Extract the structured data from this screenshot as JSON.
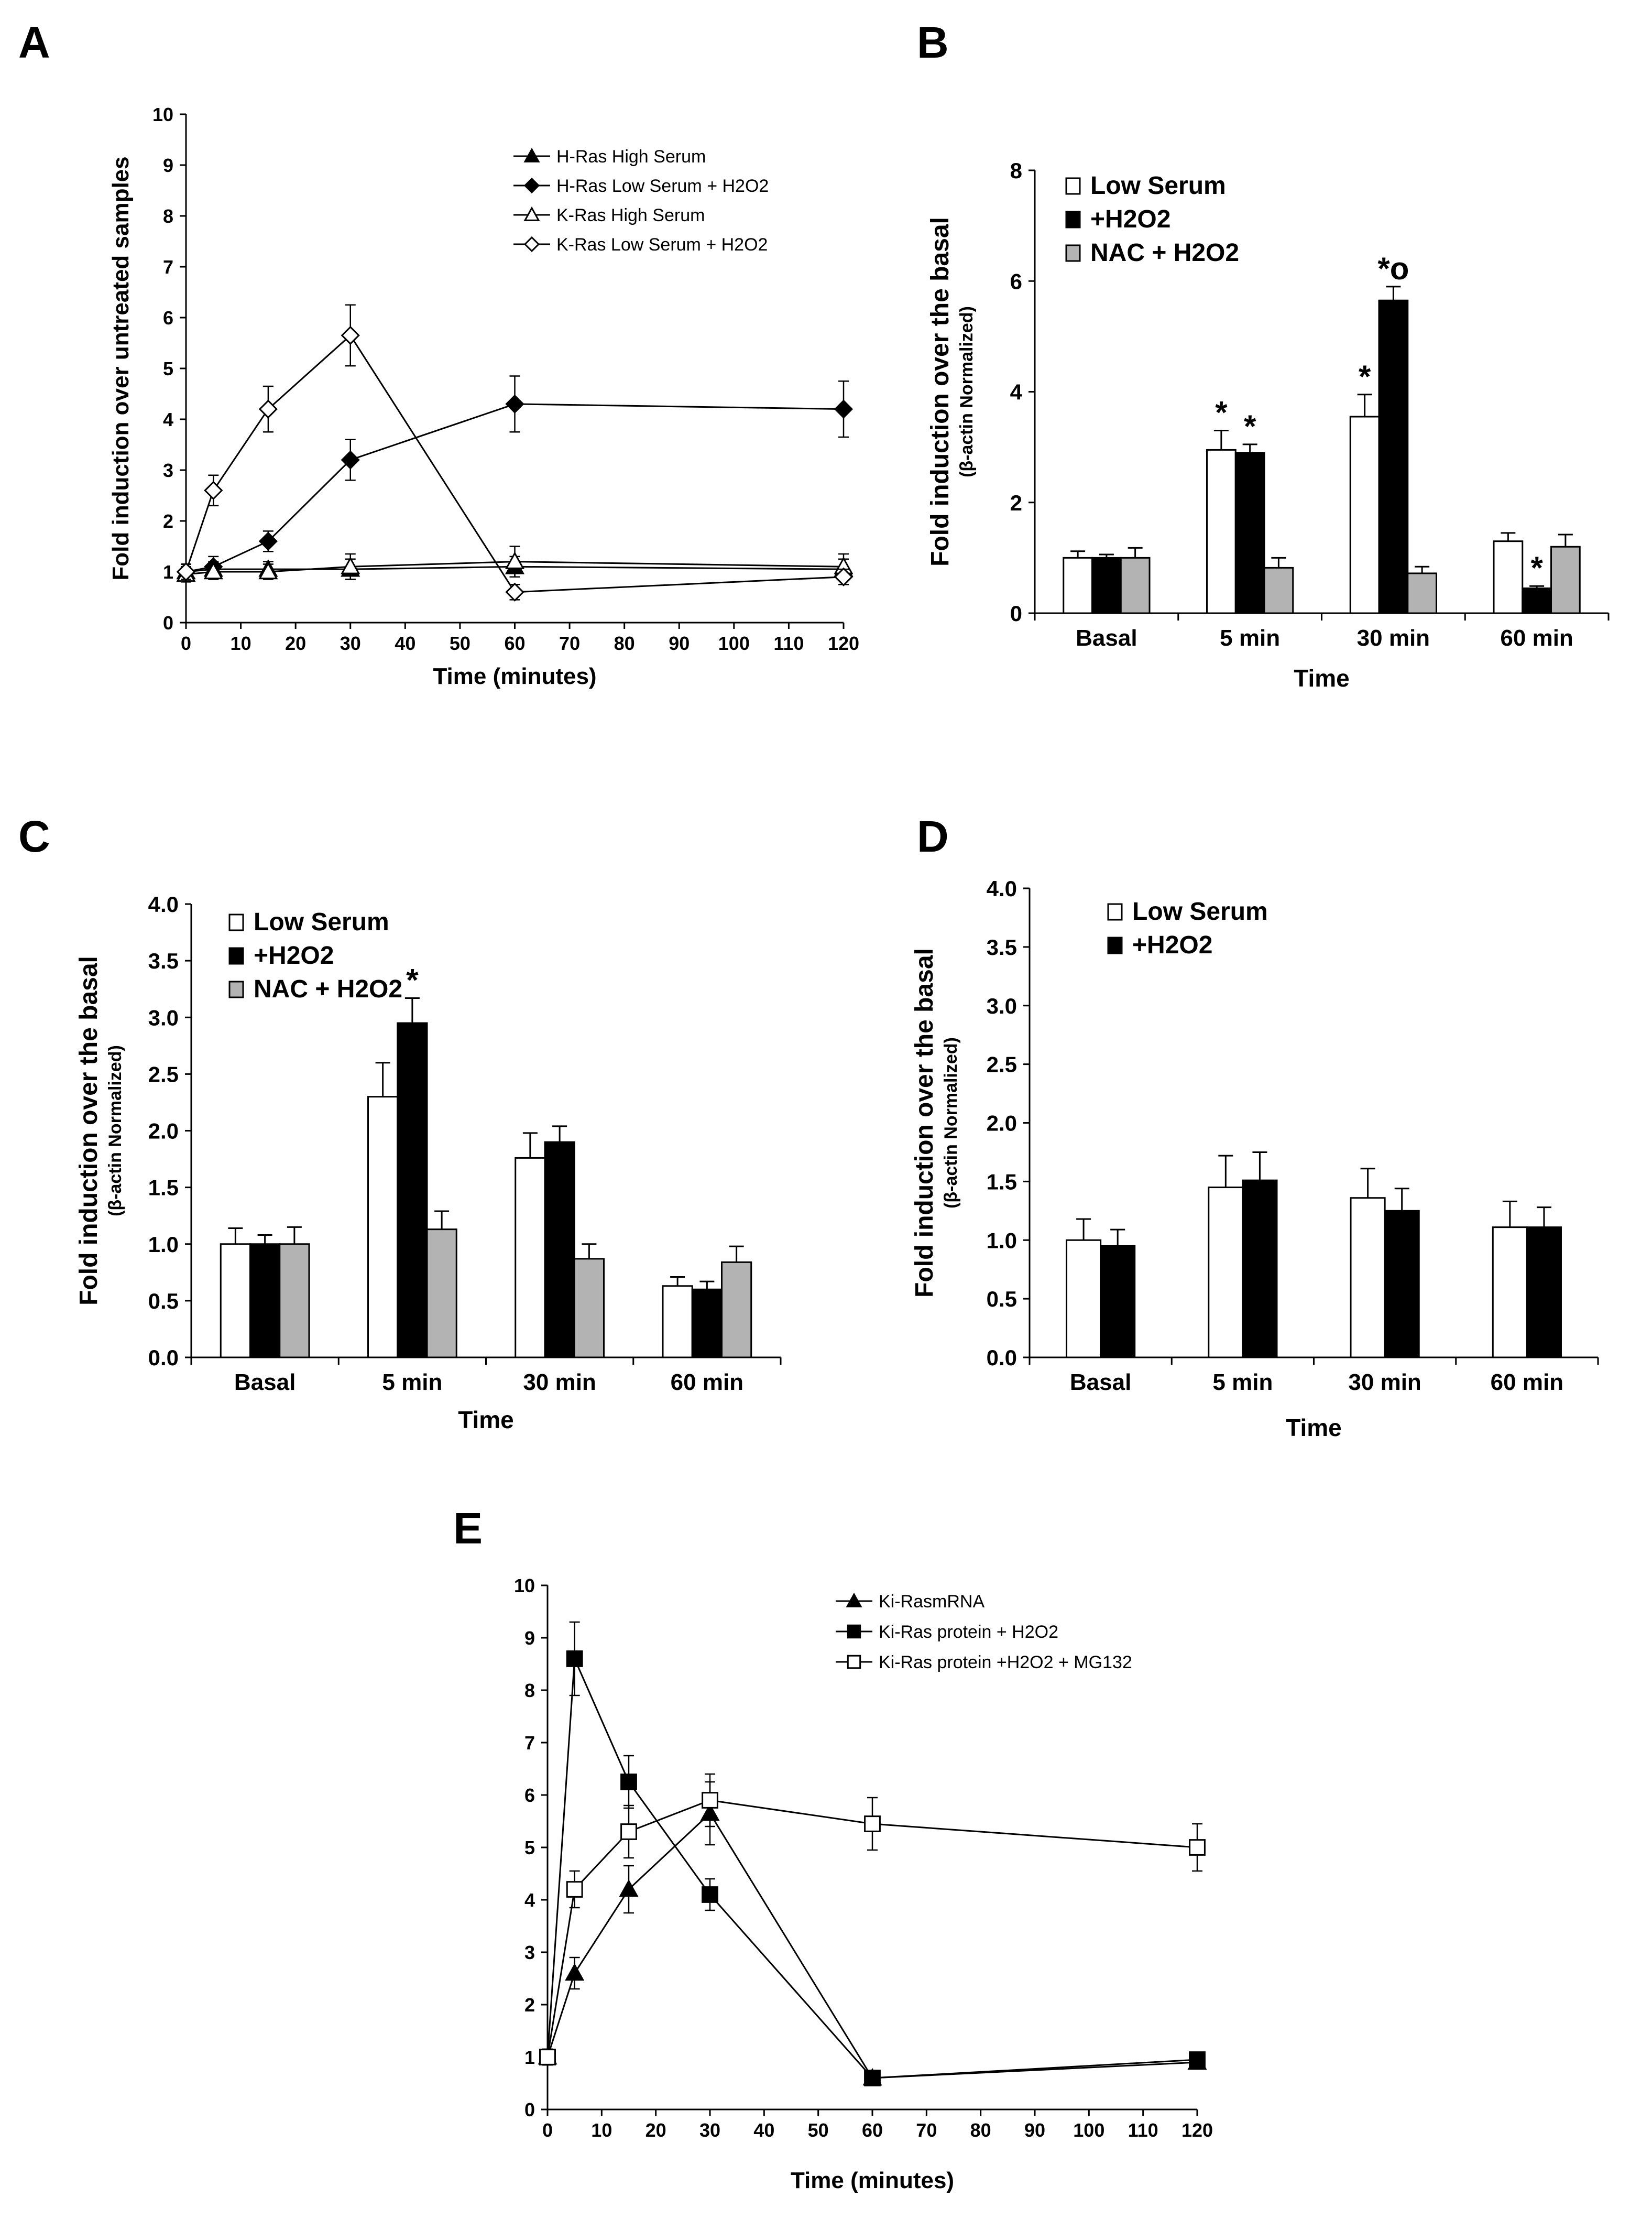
{
  "chart_data": [
    {
      "panel": "A",
      "type": "line",
      "xlabel": "Time (minutes)",
      "ylabel": "Fold induction over untreated samples",
      "xlim": [
        0,
        120
      ],
      "ylim": [
        0,
        10
      ],
      "x_ticks": [
        0,
        10,
        20,
        30,
        40,
        50,
        60,
        70,
        80,
        90,
        100,
        110,
        120
      ],
      "y_ticks": [
        0,
        1,
        2,
        3,
        4,
        5,
        6,
        7,
        8,
        9,
        10
      ],
      "legend": "top-right",
      "series": [
        {
          "name": "H-Ras High Serum",
          "marker": "triangle-filled",
          "x": [
            0,
            5,
            15,
            30,
            60,
            120
          ],
          "y": [
            1.0,
            1.05,
            1.05,
            1.05,
            1.1,
            1.05
          ],
          "err": [
            0.15,
            0.15,
            0.15,
            0.2,
            0.2,
            0.2
          ]
        },
        {
          "name": "H-Ras Low Serum + H2O2",
          "marker": "diamond-filled",
          "x": [
            0,
            5,
            15,
            30,
            60,
            120
          ],
          "y": [
            1.0,
            1.1,
            1.6,
            3.2,
            4.3,
            4.2
          ],
          "err": [
            0.15,
            0.2,
            0.2,
            0.4,
            0.55,
            0.55
          ]
        },
        {
          "name": "K-Ras High Serum",
          "marker": "triangle-open",
          "x": [
            0,
            5,
            15,
            30,
            60,
            120
          ],
          "y": [
            0.95,
            1.0,
            1.0,
            1.1,
            1.2,
            1.1
          ],
          "err": [
            0.15,
            0.15,
            0.15,
            0.25,
            0.3,
            0.25
          ]
        },
        {
          "name": "K-Ras Low Serum + H2O2",
          "marker": "diamond-open",
          "x": [
            0,
            5,
            15,
            30,
            60,
            120
          ],
          "y": [
            1.0,
            2.6,
            4.2,
            5.65,
            0.6,
            0.9
          ],
          "err": [
            0.15,
            0.3,
            0.45,
            0.6,
            0.15,
            0.15
          ]
        }
      ]
    },
    {
      "panel": "B",
      "type": "bar",
      "xlabel": "Time",
      "ylabel": "Fold induction over the basal",
      "ylabel2": "(β-actin Normalized)",
      "categories": [
        "Basal",
        "5 min",
        "30 min",
        "60 min"
      ],
      "ylim": [
        0,
        8
      ],
      "y_ticks": [
        0,
        2,
        4,
        6,
        8
      ],
      "y_decimals": 0,
      "legend": "top-left",
      "series": [
        {
          "name": "Low Serum",
          "color": "#ffffff",
          "values": [
            1.0,
            2.95,
            3.55,
            1.3
          ],
          "err": [
            0.12,
            0.35,
            0.4,
            0.15
          ],
          "marks": [
            "",
            "*",
            "*",
            ""
          ]
        },
        {
          "name": "+H2O2",
          "color": "#000000",
          "values": [
            1.0,
            2.9,
            5.65,
            0.45
          ],
          "err": [
            0.06,
            0.15,
            0.25,
            0.04
          ],
          "marks": [
            "",
            "*",
            "*o",
            "*"
          ]
        },
        {
          "name": "NAC + H2O2",
          "color": "#b3b3b3",
          "values": [
            1.0,
            0.82,
            0.72,
            1.2
          ],
          "err": [
            0.18,
            0.18,
            0.12,
            0.22
          ],
          "marks": [
            "",
            "",
            "",
            ""
          ]
        }
      ]
    },
    {
      "panel": "C",
      "type": "bar",
      "xlabel": "Time",
      "ylabel": "Fold induction over the basal",
      "ylabel2": "(β-actin Normalized)",
      "categories": [
        "Basal",
        "5 min",
        "30 min",
        "60 min"
      ],
      "ylim": [
        0,
        4
      ],
      "y_ticks": [
        0,
        0.5,
        1.0,
        1.5,
        2.0,
        2.5,
        3.0,
        3.5,
        4.0
      ],
      "y_decimals": 1,
      "legend": "top-left",
      "series": [
        {
          "name": "Low Serum",
          "color": "#ffffff",
          "values": [
            1.0,
            2.3,
            1.76,
            0.63
          ],
          "err": [
            0.14,
            0.3,
            0.22,
            0.08
          ],
          "marks": [
            "",
            "",
            "",
            ""
          ]
        },
        {
          "name": "+H2O2",
          "color": "#000000",
          "values": [
            1.0,
            2.95,
            1.9,
            0.6
          ],
          "err": [
            0.08,
            0.22,
            0.14,
            0.07
          ],
          "marks": [
            "",
            "*",
            "",
            ""
          ]
        },
        {
          "name": "NAC + H2O2",
          "color": "#b3b3b3",
          "values": [
            1.0,
            1.13,
            0.87,
            0.84
          ],
          "err": [
            0.15,
            0.16,
            0.13,
            0.14
          ],
          "marks": [
            "",
            "",
            "",
            ""
          ]
        }
      ]
    },
    {
      "panel": "D",
      "type": "bar",
      "xlabel": "Time",
      "ylabel": "Fold induction over the basal",
      "ylabel2": "(β-actin Normalized)",
      "categories": [
        "Basal",
        "5 min",
        "30 min",
        "60 min"
      ],
      "ylim": [
        0,
        4
      ],
      "y_ticks": [
        0,
        0.5,
        1.0,
        1.5,
        2.0,
        2.5,
        3.0,
        3.5,
        4.0
      ],
      "y_decimals": 1,
      "legend": "top-left",
      "series": [
        {
          "name": "Low Serum",
          "color": "#ffffff",
          "values": [
            1.0,
            1.45,
            1.36,
            1.11
          ],
          "err": [
            0.18,
            0.27,
            0.25,
            0.22
          ],
          "marks": [
            "",
            "",
            "",
            ""
          ]
        },
        {
          "name": "+H2O2",
          "color": "#000000",
          "values": [
            0.95,
            1.51,
            1.25,
            1.11
          ],
          "err": [
            0.14,
            0.24,
            0.19,
            0.17
          ],
          "marks": [
            "",
            "",
            "",
            ""
          ]
        }
      ]
    },
    {
      "panel": "E",
      "type": "line",
      "xlabel": "Time (minutes)",
      "ylabel": "",
      "xlim": [
        0,
        120
      ],
      "ylim": [
        0,
        10
      ],
      "x_ticks": [
        0,
        10,
        20,
        30,
        40,
        50,
        60,
        70,
        80,
        90,
        100,
        110,
        120
      ],
      "y_ticks": [
        0,
        1,
        2,
        3,
        4,
        5,
        6,
        7,
        8,
        9,
        10
      ],
      "legend": "top-right",
      "series": [
        {
          "name": "Ki-RasmRNA",
          "marker": "triangle-filled",
          "x": [
            0,
            5,
            15,
            30,
            60,
            120
          ],
          "y": [
            1.0,
            2.6,
            4.2,
            5.65,
            0.6,
            0.9
          ],
          "err": [
            0.15,
            0.3,
            0.45,
            0.6,
            0.12,
            0.1
          ]
        },
        {
          "name": "Ki-Ras protein + H2O2",
          "marker": "square-filled",
          "x": [
            0,
            5,
            15,
            30,
            60,
            120
          ],
          "y": [
            1.0,
            8.6,
            6.25,
            4.1,
            0.6,
            0.95
          ],
          "err": [
            0.15,
            0.7,
            0.5,
            0.3,
            0.12,
            0.1
          ]
        },
        {
          "name": "Ki-Ras protein +H2O2 + MG132",
          "marker": "square-open",
          "x": [
            0,
            5,
            15,
            30,
            60,
            120
          ],
          "y": [
            1.0,
            4.2,
            5.3,
            5.9,
            5.45,
            5.0
          ],
          "err": [
            0.15,
            0.35,
            0.5,
            0.5,
            0.5,
            0.45
          ]
        }
      ]
    }
  ]
}
